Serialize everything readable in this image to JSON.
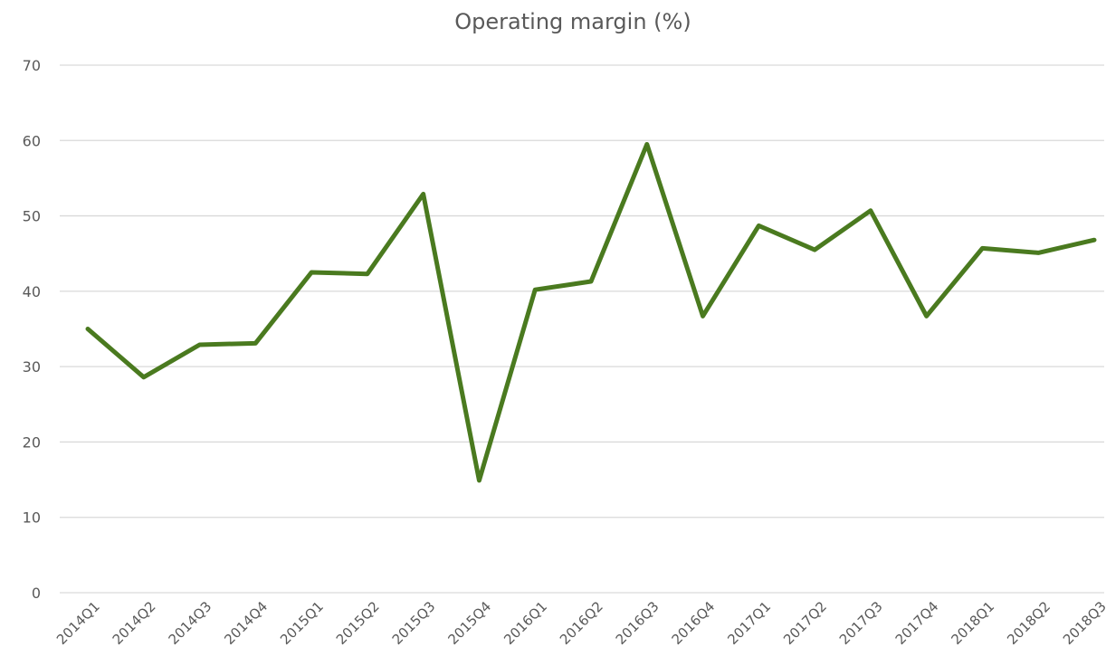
{
  "chart_data": {
    "type": "line",
    "title": "Operating margin (%)",
    "categories": [
      "2014Q1",
      "2014Q2",
      "2014Q3",
      "2014Q4",
      "2015Q1",
      "2015Q2",
      "2015Q3",
      "2015Q4",
      "2016Q1",
      "2016Q2",
      "2016Q3",
      "2016Q4",
      "2017Q1",
      "2017Q2",
      "2017Q3",
      "2017Q4",
      "2018Q1",
      "2018Q2",
      "2018Q3"
    ],
    "series": [
      {
        "name": "Operating margin",
        "color": "#4a7a1f",
        "values": [
          35.0,
          28.6,
          32.9,
          33.1,
          42.5,
          42.3,
          52.9,
          14.9,
          40.2,
          41.3,
          59.5,
          36.7,
          48.7,
          45.5,
          50.7,
          36.7,
          45.7,
          45.1,
          46.8
        ]
      }
    ],
    "ylim": [
      0,
      70
    ],
    "yticks": [
      0,
      10,
      20,
      30,
      40,
      50,
      60,
      70
    ],
    "grid": true
  }
}
